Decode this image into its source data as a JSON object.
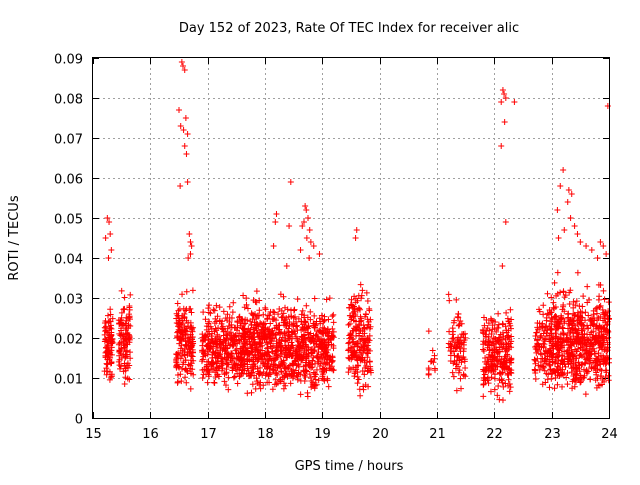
{
  "chart_data": {
    "type": "scatter",
    "title": "Day 152 of 2023, Rate Of TEC Index for receiver alic",
    "xlabel": "GPS time / hours",
    "ylabel": "ROTI / TECUs",
    "xlim": [
      15,
      24
    ],
    "ylim": [
      0,
      0.09
    ],
    "xticks": [
      15,
      16,
      17,
      18,
      19,
      20,
      21,
      22,
      23,
      24
    ],
    "yticks": [
      0,
      0.01,
      0.02,
      0.03,
      0.04,
      0.05,
      0.06,
      0.07,
      0.08,
      0.09
    ],
    "xtick_labels": [
      "15",
      "16",
      "17",
      "18",
      "19",
      "20",
      "21",
      "22",
      "23",
      "24"
    ],
    "ytick_labels": [
      "0",
      "0.01",
      "0.02",
      "0.03",
      "0.04",
      "0.05",
      "0.06",
      "0.07",
      "0.08",
      "0.09"
    ],
    "grid": true,
    "marker": "+",
    "color": "#ff0000",
    "clusters": [
      {
        "x": [
          15.2,
          15.35
        ],
        "y": [
          0.007,
          0.031
        ],
        "n": 90
      },
      {
        "x": [
          15.45,
          15.65
        ],
        "y": [
          0.007,
          0.036
        ],
        "n": 110
      },
      {
        "x": [
          16.45,
          16.75
        ],
        "y": [
          0.006,
          0.035
        ],
        "n": 170
      },
      {
        "x": [
          16.9,
          17.65
        ],
        "y": [
          0.006,
          0.032
        ],
        "n": 340
      },
      {
        "x": [
          17.6,
          18.35
        ],
        "y": [
          0.004,
          0.034
        ],
        "n": 420
      },
      {
        "x": [
          18.35,
          18.95
        ],
        "y": [
          0.004,
          0.033
        ],
        "n": 320
      },
      {
        "x": [
          18.95,
          19.2
        ],
        "y": [
          0.005,
          0.032
        ],
        "n": 140
      },
      {
        "x": [
          19.45,
          19.85
        ],
        "y": [
          0.004,
          0.038
        ],
        "n": 200
      },
      {
        "x": [
          20.85,
          21.0
        ],
        "y": [
          0.007,
          0.023
        ],
        "n": 14
      },
      {
        "x": [
          21.2,
          21.5
        ],
        "y": [
          0.005,
          0.033
        ],
        "n": 90
      },
      {
        "x": [
          21.8,
          22.3
        ],
        "y": [
          0.004,
          0.03
        ],
        "n": 250
      },
      {
        "x": [
          22.7,
          22.95
        ],
        "y": [
          0.005,
          0.033
        ],
        "n": 90
      },
      {
        "x": [
          22.95,
          24.0
        ],
        "y": [
          0.004,
          0.037
        ],
        "n": 650
      }
    ],
    "outliers": [
      {
        "x": 15.25,
        "y": 0.05
      },
      {
        "x": 15.28,
        "y": 0.049
      },
      {
        "x": 15.3,
        "y": 0.046
      },
      {
        "x": 15.22,
        "y": 0.045
      },
      {
        "x": 15.32,
        "y": 0.042
      },
      {
        "x": 15.27,
        "y": 0.04
      },
      {
        "x": 16.55,
        "y": 0.089
      },
      {
        "x": 16.57,
        "y": 0.088
      },
      {
        "x": 16.6,
        "y": 0.087
      },
      {
        "x": 16.5,
        "y": 0.077
      },
      {
        "x": 16.53,
        "y": 0.073
      },
      {
        "x": 16.58,
        "y": 0.072
      },
      {
        "x": 16.62,
        "y": 0.075
      },
      {
        "x": 16.65,
        "y": 0.071
      },
      {
        "x": 16.6,
        "y": 0.068
      },
      {
        "x": 16.63,
        "y": 0.066
      },
      {
        "x": 16.65,
        "y": 0.059
      },
      {
        "x": 16.52,
        "y": 0.058
      },
      {
        "x": 16.68,
        "y": 0.046
      },
      {
        "x": 16.7,
        "y": 0.044
      },
      {
        "x": 16.72,
        "y": 0.043
      },
      {
        "x": 16.7,
        "y": 0.041
      },
      {
        "x": 16.66,
        "y": 0.04
      },
      {
        "x": 18.2,
        "y": 0.051
      },
      {
        "x": 18.18,
        "y": 0.049
      },
      {
        "x": 18.15,
        "y": 0.043
      },
      {
        "x": 18.45,
        "y": 0.059
      },
      {
        "x": 18.42,
        "y": 0.048
      },
      {
        "x": 18.38,
        "y": 0.038
      },
      {
        "x": 18.7,
        "y": 0.053
      },
      {
        "x": 18.72,
        "y": 0.052
      },
      {
        "x": 18.75,
        "y": 0.05
      },
      {
        "x": 18.68,
        "y": 0.049
      },
      {
        "x": 18.65,
        "y": 0.048
      },
      {
        "x": 18.78,
        "y": 0.047
      },
      {
        "x": 18.73,
        "y": 0.045
      },
      {
        "x": 18.8,
        "y": 0.044
      },
      {
        "x": 18.85,
        "y": 0.043
      },
      {
        "x": 18.62,
        "y": 0.042
      },
      {
        "x": 18.95,
        "y": 0.041
      },
      {
        "x": 18.77,
        "y": 0.04
      },
      {
        "x": 19.6,
        "y": 0.047
      },
      {
        "x": 19.58,
        "y": 0.045
      },
      {
        "x": 22.15,
        "y": 0.082
      },
      {
        "x": 22.17,
        "y": 0.081
      },
      {
        "x": 22.2,
        "y": 0.08
      },
      {
        "x": 22.12,
        "y": 0.079
      },
      {
        "x": 22.35,
        "y": 0.079
      },
      {
        "x": 22.18,
        "y": 0.074
      },
      {
        "x": 22.12,
        "y": 0.068
      },
      {
        "x": 22.2,
        "y": 0.049
      },
      {
        "x": 22.14,
        "y": 0.038
      },
      {
        "x": 23.2,
        "y": 0.062
      },
      {
        "x": 23.15,
        "y": 0.058
      },
      {
        "x": 23.3,
        "y": 0.057
      },
      {
        "x": 23.35,
        "y": 0.056
      },
      {
        "x": 23.28,
        "y": 0.054
      },
      {
        "x": 23.1,
        "y": 0.052
      },
      {
        "x": 23.33,
        "y": 0.05
      },
      {
        "x": 23.4,
        "y": 0.048
      },
      {
        "x": 23.22,
        "y": 0.047
      },
      {
        "x": 23.45,
        "y": 0.046
      },
      {
        "x": 23.12,
        "y": 0.045
      },
      {
        "x": 23.5,
        "y": 0.044
      },
      {
        "x": 23.6,
        "y": 0.043
      },
      {
        "x": 23.85,
        "y": 0.044
      },
      {
        "x": 23.9,
        "y": 0.043
      },
      {
        "x": 23.7,
        "y": 0.042
      },
      {
        "x": 23.95,
        "y": 0.041
      },
      {
        "x": 23.8,
        "y": 0.04
      },
      {
        "x": 23.98,
        "y": 0.078
      }
    ]
  }
}
